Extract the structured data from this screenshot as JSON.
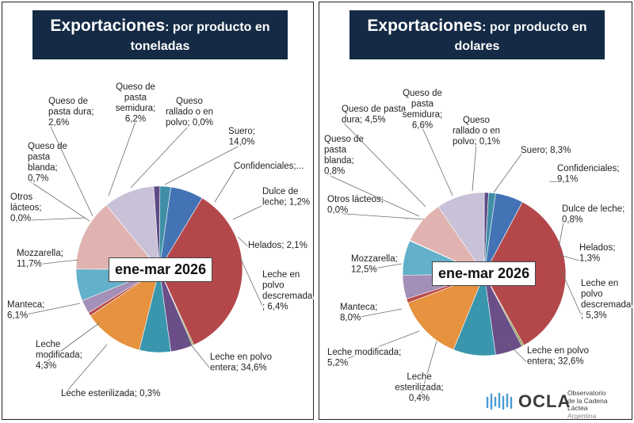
{
  "colors": {
    "title_bg": "#142a45",
    "leche_entera": "#b3474a",
    "leche_esterilizada": "#8e9e49",
    "leche_modificada": "#6a4e88",
    "manteca": "#3a96ad",
    "mozzarella": "#e6923f",
    "otros_lacteos": "#4473b5",
    "queso_pasta_blanda": "#b94c4a",
    "queso_pasta_dura": "#a48fb8",
    "queso_pasta_semidura": "#62b0c9",
    "queso_rallado": "#f2a66a",
    "suero": "#e0b3b1",
    "confidenciales": "#c8c1d8",
    "dulce_de_leche": "#5e4a86",
    "helados": "#3f8ea5",
    "leche_descremada": "#4473b5"
  },
  "period_label": "ene-mar 2026",
  "logo": {
    "name": "OCLA",
    "line1": "Observatorio",
    "line2": "de la Cadena Láctea",
    "line3": "Argentina"
  },
  "chart_data": [
    {
      "type": "pie",
      "title_main": "Exportaciones",
      "title_rest": ": por producto en",
      "title_line2": "toneladas",
      "unit": "%",
      "slices": [
        {
          "key": "leche_descremada",
          "label_lines": [
            "Leche en",
            "polvo",
            "descremada",
            "; 6,4%"
          ],
          "value": 6.4
        },
        {
          "key": "leche_entera",
          "label_lines": [
            "Leche en polvo",
            "entera; 34,6%"
          ],
          "value": 34.6
        },
        {
          "key": "leche_esterilizada",
          "label_lines": [
            "Leche esterilizada; 0,3%"
          ],
          "value": 0.3
        },
        {
          "key": "leche_modificada",
          "label_lines": [
            "Leche",
            "modificada;",
            "4,3%"
          ],
          "value": 4.3
        },
        {
          "key": "manteca",
          "label_lines": [
            "Manteca;",
            "6,1%"
          ],
          "value": 6.1
        },
        {
          "key": "mozzarella",
          "label_lines": [
            "Mozzarella;",
            "11,7%"
          ],
          "value": 11.7
        },
        {
          "key": "otros_lacteos",
          "label_lines": [
            "Otros",
            "lácteos;",
            "0,0%"
          ],
          "value": 0.0
        },
        {
          "key": "queso_pasta_blanda",
          "label_lines": [
            "Queso de",
            "pasta",
            "blanda;",
            "0,7%"
          ],
          "value": 0.7
        },
        {
          "key": "queso_pasta_dura",
          "label_lines": [
            "Queso de",
            "pasta dura;",
            "2,6%"
          ],
          "value": 2.6
        },
        {
          "key": "queso_pasta_semidura",
          "label_lines": [
            "Queso de",
            "pasta",
            "semidura;",
            "6,2%"
          ],
          "value": 6.2
        },
        {
          "key": "queso_rallado",
          "label_lines": [
            "Queso",
            "rallado o en",
            "polvo; 0,0%"
          ],
          "value": 0.0
        },
        {
          "key": "suero",
          "label_lines": [
            "Suero;",
            "14,0%"
          ],
          "value": 14.0
        },
        {
          "key": "confidenciales",
          "label_lines": [
            "Confidenciales;..."
          ],
          "value": 9.9
        },
        {
          "key": "dulce_de_leche",
          "label_lines": [
            "Dulce de",
            "leche; 1,2%"
          ],
          "value": 1.2
        },
        {
          "key": "helados",
          "label_lines": [
            "Helados; 2,1%"
          ],
          "value": 2.1
        }
      ]
    },
    {
      "type": "pie",
      "title_main": "Exportaciones",
      "title_rest": ": por producto en",
      "title_line2": "dolares",
      "unit": "%",
      "slices": [
        {
          "key": "leche_descremada",
          "label_lines": [
            "Leche en",
            "polvo",
            "descremada",
            "; 5,3%"
          ],
          "value": 5.3
        },
        {
          "key": "leche_entera",
          "label_lines": [
            "Leche en polvo",
            "entera; 32,6%"
          ],
          "value": 32.6
        },
        {
          "key": "leche_esterilizada",
          "label_lines": [
            "Leche",
            "esterilizada;",
            "0,4%"
          ],
          "value": 0.4
        },
        {
          "key": "leche_modificada",
          "label_lines": [
            "Leche modificada;",
            "5,2%"
          ],
          "value": 5.2
        },
        {
          "key": "manteca",
          "label_lines": [
            "Manteca;",
            "8,0%"
          ],
          "value": 8.0
        },
        {
          "key": "mozzarella",
          "label_lines": [
            "Mozzarella;",
            "12,5%"
          ],
          "value": 12.5
        },
        {
          "key": "otros_lacteos",
          "label_lines": [
            "Otros lácteos;",
            "0,0%"
          ],
          "value": 0.0
        },
        {
          "key": "queso_pasta_blanda",
          "label_lines": [
            "Queso de",
            "pasta",
            "blanda;",
            "0,8%"
          ],
          "value": 0.8
        },
        {
          "key": "queso_pasta_dura",
          "label_lines": [
            "Queso de pasta",
            "dura; 4,5%"
          ],
          "value": 4.5
        },
        {
          "key": "queso_pasta_semidura",
          "label_lines": [
            "Queso de",
            "pasta",
            "semidura;",
            "6,6%"
          ],
          "value": 6.6
        },
        {
          "key": "queso_rallado",
          "label_lines": [
            "Queso",
            "rallado o en",
            "polvo; 0,1%"
          ],
          "value": 0.1
        },
        {
          "key": "suero",
          "label_lines": [
            "Suero; 8,3%"
          ],
          "value": 8.3
        },
        {
          "key": "confidenciales",
          "label_lines": [
            "Confidenciales;",
            "9,1%"
          ],
          "value": 9.1
        },
        {
          "key": "dulce_de_leche",
          "label_lines": [
            "Dulce de leche;",
            "0,8%"
          ],
          "value": 0.8
        },
        {
          "key": "helados",
          "label_lines": [
            "Helados;",
            "1,3%"
          ],
          "value": 1.3
        }
      ]
    }
  ]
}
